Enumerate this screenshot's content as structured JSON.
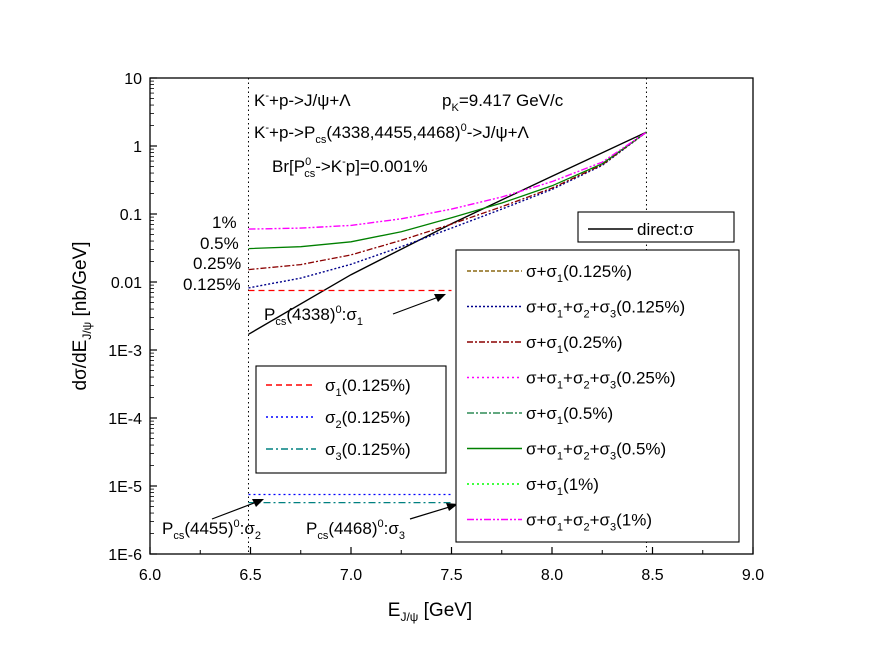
{
  "chart_data": {
    "type": "line",
    "scale": {
      "x": "linear",
      "y": "log"
    },
    "xlim": [
      6.0,
      9.0
    ],
    "ylim": [
      1e-06,
      10
    ],
    "xlabel": {
      "main": "E",
      "sub": "J/ψ",
      "unit": " [GeV]"
    },
    "ylabel": {
      "main": "dσ/dE",
      "sub": "J/ψ",
      "unit": " [nb/GeV]"
    },
    "x_ticks": [
      {
        "v": 6.0,
        "label": "6.0"
      },
      {
        "v": 6.5,
        "label": "6.5"
      },
      {
        "v": 7.0,
        "label": "7.0"
      },
      {
        "v": 7.5,
        "label": "7.5"
      },
      {
        "v": 8.0,
        "label": "8.0"
      },
      {
        "v": 8.5,
        "label": "8.5"
      },
      {
        "v": 9.0,
        "label": "9.0"
      }
    ],
    "y_ticks": [
      {
        "v": 10,
        "label": "10"
      },
      {
        "v": 1,
        "label": "1"
      },
      {
        "v": 0.1,
        "label": "0.1"
      },
      {
        "v": 0.01,
        "label": "0.01"
      },
      {
        "v": 0.001,
        "label": "1E-3"
      },
      {
        "v": 0.0001,
        "label": "1E-4"
      },
      {
        "v": 1e-05,
        "label": "1E-5"
      },
      {
        "v": 1e-06,
        "label": "1E-6"
      }
    ],
    "vertical_lines": [
      6.49,
      8.47
    ],
    "annotations": {
      "line1": {
        "a": "K",
        "a_sup": "-",
        "b": "+p->J/ψ+Λ",
        "c": "p",
        "c_sub": "K",
        "d": "=9.417 GeV/c"
      },
      "line2": {
        "a": "K",
        "a_sup": "-",
        "b": "+p->P",
        "b_sub": "cs",
        "c": "(4338,4455,4468)",
        "c_sup": "0",
        "d": "->J/ψ+Λ"
      },
      "line3": {
        "a": "Br[P",
        "a_sup": "0",
        "a_sub": "cs",
        "b": "->K",
        "b_sup": "-",
        "c": "p]=0.001%"
      },
      "pct_labels": [
        "1%",
        "0.5%",
        "0.25%",
        "0.125%"
      ],
      "pcs4338": {
        "a": "P",
        "a_sub": "cs",
        "b": "(4338)",
        "b_sup": "0",
        "c": ":σ",
        "c_sub": "1"
      },
      "pcs4455": {
        "a": "P",
        "a_sub": "cs",
        "b": "(4455)",
        "b_sup": "0",
        "c": ":σ",
        "c_sub": "2"
      },
      "pcs4468": {
        "a": "P",
        "a_sub": "cs",
        "b": "(4468)",
        "b_sup": "0",
        "c": ":σ",
        "c_sub": "3"
      }
    },
    "legend_top": {
      "label": "direct:σ"
    },
    "legend_left": [
      {
        "pre": "σ",
        "sub": "1",
        "post": "(0.125%)"
      },
      {
        "pre": "σ",
        "sub": "2",
        "post": "(0.125%)"
      },
      {
        "pre": "σ",
        "sub": "3",
        "post": "(0.125%)"
      }
    ],
    "legend_right": [
      {
        "parts": [
          [
            "σ+σ",
            "1"
          ],
          [
            "(0.125%)",
            ""
          ]
        ]
      },
      {
        "parts": [
          [
            "σ+σ",
            "1"
          ],
          [
            "+σ",
            "2"
          ],
          [
            "+σ",
            "3"
          ],
          [
            "(0.125%)",
            ""
          ]
        ]
      },
      {
        "parts": [
          [
            "σ+σ",
            "1"
          ],
          [
            "(0.25%)",
            ""
          ]
        ]
      },
      {
        "parts": [
          [
            "σ+σ",
            "1"
          ],
          [
            "+σ",
            "2"
          ],
          [
            "+σ",
            "3"
          ],
          [
            "(0.25%)",
            ""
          ]
        ]
      },
      {
        "parts": [
          [
            "σ+σ",
            "1"
          ],
          [
            "(0.5%)",
            ""
          ]
        ]
      },
      {
        "parts": [
          [
            "σ+σ",
            "1"
          ],
          [
            "+σ",
            "2"
          ],
          [
            "+σ",
            "3"
          ],
          [
            "(0.5%)",
            ""
          ]
        ]
      },
      {
        "parts": [
          [
            "σ+σ",
            "1"
          ],
          [
            "(1%)",
            ""
          ]
        ]
      },
      {
        "parts": [
          [
            "σ+σ",
            "1"
          ],
          [
            "+σ",
            "2"
          ],
          [
            "+σ",
            "3"
          ],
          [
            "(1%)",
            ""
          ]
        ]
      }
    ],
    "series": [
      {
        "id": "direct",
        "color": "#000000",
        "dash": "",
        "width": 1.4,
        "x": [
          6.49,
          7.0,
          7.5,
          8.0,
          8.47
        ],
        "y": [
          0.0017,
          0.0128,
          0.072,
          0.36,
          1.6
        ]
      },
      {
        "id": "s1_0125",
        "color": "#ff0000",
        "dash": "6,4",
        "width": 1.2,
        "x": [
          6.49,
          7.5
        ],
        "y": [
          0.0075,
          0.0075
        ]
      },
      {
        "id": "s2_0125",
        "color": "#0000ff",
        "dash": "2,3",
        "width": 1.2,
        "x": [
          6.49,
          7.5
        ],
        "y": [
          7.5e-06,
          7.5e-06
        ]
      },
      {
        "id": "s3_0125",
        "color": "#008080",
        "dash": "7,3,2,3",
        "width": 1.2,
        "x": [
          6.49,
          7.5
        ],
        "y": [
          5.7e-06,
          5.7e-06
        ]
      },
      {
        "id": "sum_0125",
        "color": "#00008b",
        "dash": "2,2",
        "width": 1.4,
        "x": [
          6.49,
          6.75,
          7.0,
          7.25,
          7.5,
          7.75,
          8.0,
          8.25,
          8.47
        ],
        "y": [
          0.0082,
          0.0114,
          0.0182,
          0.033,
          0.062,
          0.118,
          0.23,
          0.52,
          1.6
        ]
      },
      {
        "id": "sum_025",
        "color": "#8b0000",
        "dash": "6,2,2,2",
        "width": 1.3,
        "x": [
          6.49,
          6.75,
          7.0,
          7.25,
          7.5,
          7.75,
          8.0,
          8.25,
          8.47
        ],
        "y": [
          0.0152,
          0.018,
          0.025,
          0.041,
          0.071,
          0.128,
          0.24,
          0.53,
          1.6
        ]
      },
      {
        "id": "sum_05",
        "color": "#008000",
        "dash": "",
        "width": 1.3,
        "x": [
          6.49,
          6.75,
          7.0,
          7.25,
          7.5,
          7.75,
          8.0,
          8.25,
          8.47
        ],
        "y": [
          0.031,
          0.033,
          0.039,
          0.055,
          0.088,
          0.145,
          0.26,
          0.55,
          1.6
        ]
      },
      {
        "id": "sum_1",
        "color": "#ff00ff",
        "dash": "7,2,2,2,2,2",
        "width": 1.4,
        "x": [
          6.49,
          6.75,
          7.0,
          7.25,
          7.5,
          7.75,
          8.0,
          8.25,
          8.47
        ],
        "y": [
          0.06,
          0.062,
          0.068,
          0.085,
          0.118,
          0.178,
          0.3,
          0.58,
          1.6
        ]
      }
    ],
    "legend_left_styles": [
      {
        "color": "#ff0000",
        "dash": "6,4"
      },
      {
        "color": "#0000ff",
        "dash": "2,3"
      },
      {
        "color": "#008080",
        "dash": "7,3,2,3"
      }
    ],
    "legend_right_styles": [
      {
        "color": "#8b6914",
        "dash": "4,2"
      },
      {
        "color": "#00008b",
        "dash": "2,2"
      },
      {
        "color": "#8b0000",
        "dash": "6,2,2,2"
      },
      {
        "color": "#ff00ff",
        "dash": "2,3"
      },
      {
        "color": "#2e8b57",
        "dash": "7,2,2,2"
      },
      {
        "color": "#008000",
        "dash": ""
      },
      {
        "color": "#00ff00",
        "dash": "2,3"
      },
      {
        "color": "#ff00ff",
        "dash": "7,2,2,2,2,2"
      }
    ]
  }
}
